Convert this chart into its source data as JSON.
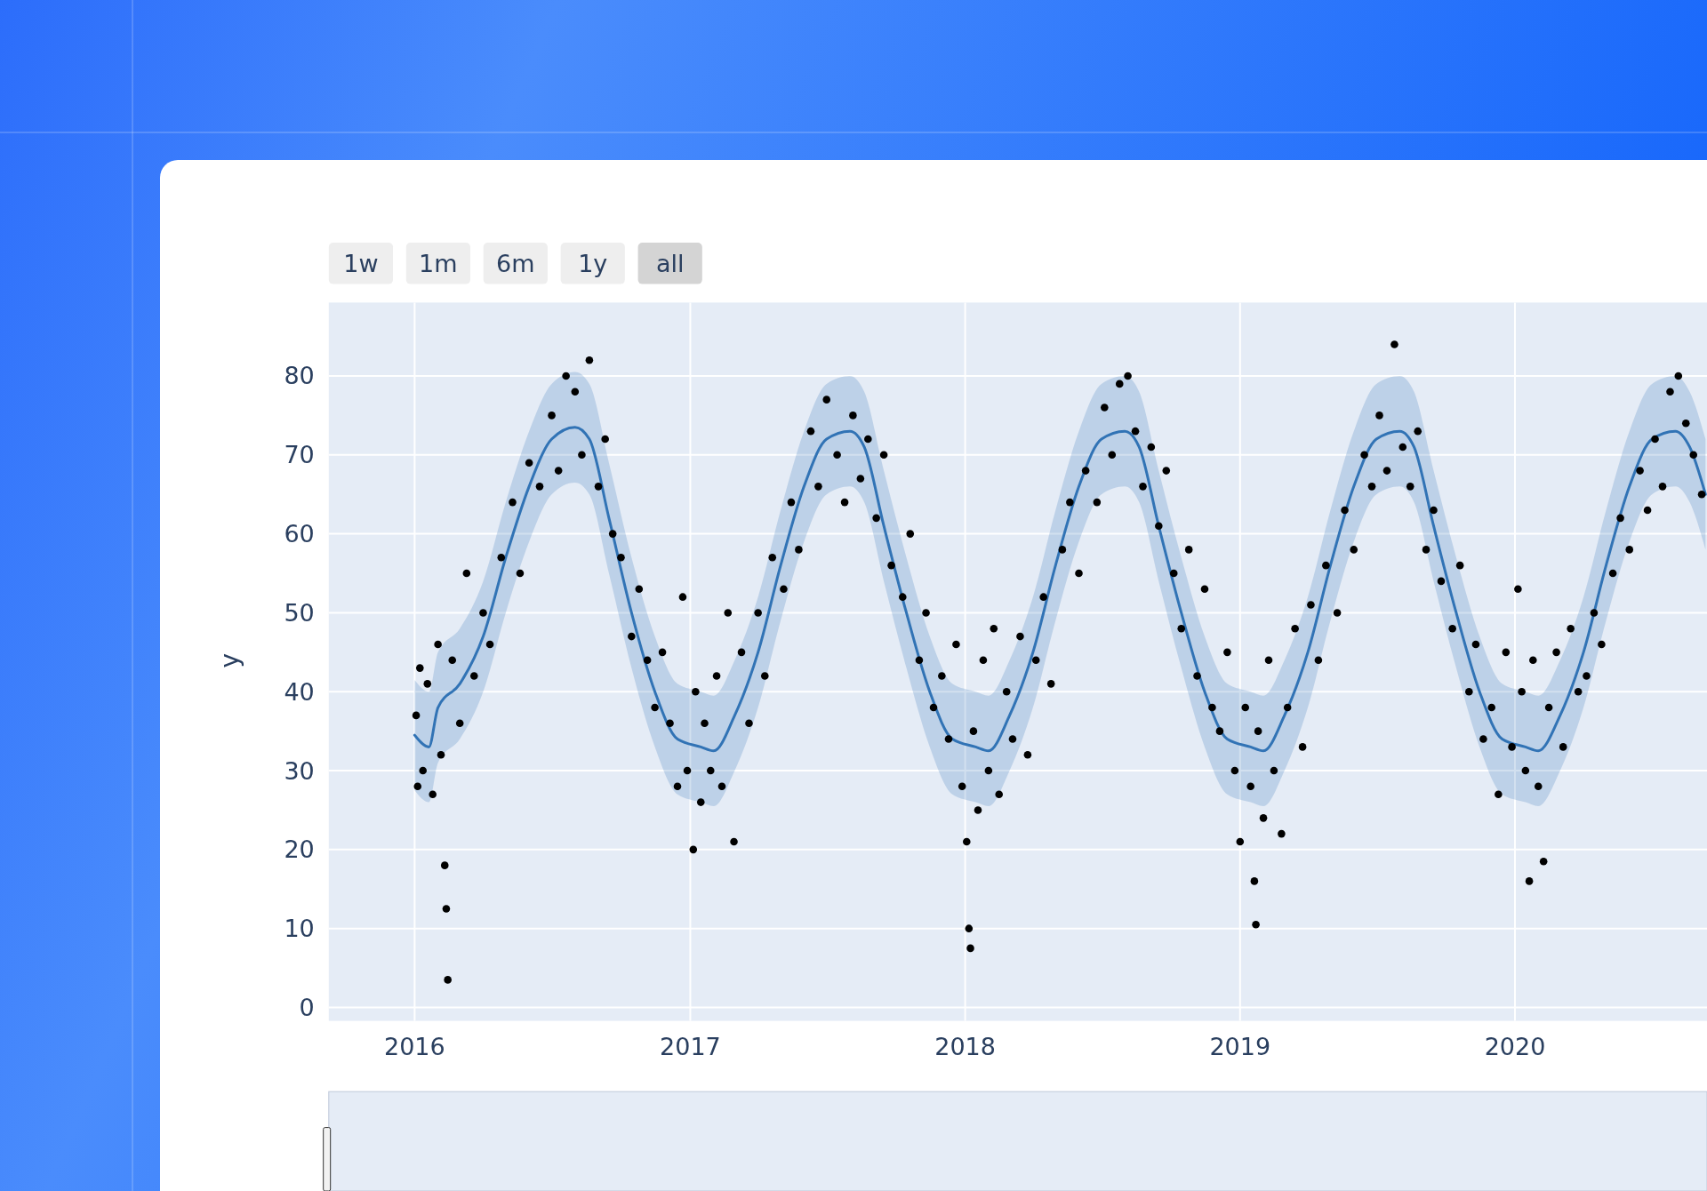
{
  "chart_data": {
    "type": "scatter",
    "ylabel": "y",
    "annotations": [
      "1w",
      "1m",
      "6m",
      "1y",
      "all"
    ],
    "xlim": [
      "2015-09-09",
      "2020-09-12"
    ],
    "xticks": [
      "2016",
      "2017",
      "2018",
      "2019",
      "2020"
    ],
    "ylim": [
      -1.7,
      89.3
    ],
    "yticks": [
      0,
      10,
      20,
      30,
      40,
      50,
      60,
      70,
      80
    ],
    "grid": true,
    "series": [
      {
        "type": "line",
        "color": "#3173b5",
        "x": [
          "2016-01-01",
          "2016-01-20",
          "2016-02-01",
          "2016-03-01",
          "2016-04-01",
          "2016-05-01",
          "2016-06-01",
          "2016-07-01",
          "2016-08-01",
          "2016-08-20",
          "2016-09-15",
          "2016-10-15",
          "2016-11-15",
          "2016-12-15",
          "2017-01-15",
          "2017-02-01",
          "2017-03-01",
          "2017-04-01",
          "2017-05-01",
          "2017-06-01",
          "2017-07-01",
          "2017-08-01",
          "2017-08-20",
          "2017-09-15",
          "2017-10-15",
          "2017-11-15",
          "2017-12-15",
          "2018-01-15",
          "2018-02-01",
          "2018-03-01",
          "2018-04-01",
          "2018-05-01",
          "2018-06-01",
          "2018-07-01",
          "2018-08-01",
          "2018-08-20",
          "2018-09-15",
          "2018-10-15",
          "2018-11-15",
          "2018-12-15",
          "2019-01-15",
          "2019-02-01",
          "2019-03-01",
          "2019-04-01",
          "2019-05-01",
          "2019-06-01",
          "2019-07-01",
          "2019-08-01",
          "2019-08-20",
          "2019-09-15",
          "2019-10-15",
          "2019-11-15",
          "2019-12-15",
          "2020-01-15",
          "2020-02-01",
          "2020-03-01",
          "2020-04-01",
          "2020-05-01",
          "2020-06-01",
          "2020-07-01",
          "2020-08-01",
          "2020-08-20",
          "2020-09-10"
        ],
        "values": [
          34.5,
          33,
          38,
          41,
          47,
          57,
          66,
          72,
          73.5,
          72,
          62,
          50,
          40,
          34,
          33,
          32.5,
          37,
          45,
          56,
          66,
          72,
          73,
          71,
          61,
          50,
          40,
          34,
          33,
          32.5,
          37,
          45,
          56,
          66,
          72,
          73,
          71,
          61,
          50,
          40,
          34,
          33,
          32.5,
          37,
          45,
          56,
          66,
          72,
          73,
          71,
          61,
          50,
          40,
          34,
          33,
          32.5,
          37,
          45,
          56,
          66,
          72,
          73,
          71,
          65
        ],
        "lower": [
          27.5,
          26,
          31,
          34,
          40,
          50,
          59,
          65,
          66.5,
          65,
          55,
          43,
          33,
          27,
          26,
          25.5,
          30,
          38,
          49,
          59,
          65,
          66,
          64,
          54,
          43,
          33,
          27,
          26,
          25.5,
          30,
          38,
          49,
          59,
          65,
          66,
          64,
          54,
          43,
          33,
          27,
          26,
          25.5,
          30,
          38,
          49,
          59,
          65,
          66,
          64,
          54,
          43,
          33,
          27,
          26,
          25.5,
          30,
          38,
          49,
          59,
          65,
          66,
          64,
          58
        ],
        "upper": [
          41.5,
          40,
          45,
          48,
          54,
          64,
          73,
          79,
          80.5,
          79,
          69,
          57,
          47,
          41,
          40,
          39.5,
          44,
          52,
          63,
          73,
          79,
          80,
          78,
          68,
          57,
          47,
          41,
          40,
          39.5,
          44,
          52,
          63,
          73,
          79,
          80,
          78,
          68,
          57,
          47,
          41,
          40,
          39.5,
          44,
          52,
          63,
          73,
          79,
          80,
          78,
          68,
          57,
          47,
          41,
          40,
          39.5,
          44,
          52,
          63,
          73,
          79,
          80,
          78,
          72
        ]
      },
      {
        "marker": "circle",
        "color": "#000000",
        "x": [
          "2016-01-03",
          "2016-01-05",
          "2016-01-08",
          "2016-01-12",
          "2016-01-18",
          "2016-01-25",
          "2016-02-01",
          "2016-02-05",
          "2016-02-10",
          "2016-02-12",
          "2016-02-14",
          "2016-02-20",
          "2016-03-01",
          "2016-03-10",
          "2016-03-20",
          "2016-04-01",
          "2016-04-10",
          "2016-04-25",
          "2016-05-10",
          "2016-05-20",
          "2016-06-01",
          "2016-06-15",
          "2016-07-01",
          "2016-07-10",
          "2016-07-20",
          "2016-08-01",
          "2016-08-10",
          "2016-08-20",
          "2016-09-01",
          "2016-09-10",
          "2016-09-20",
          "2016-10-01",
          "2016-10-15",
          "2016-10-25",
          "2016-11-05",
          "2016-11-15",
          "2016-11-25",
          "2016-12-05",
          "2016-12-15",
          "2016-12-22",
          "2016-12-28",
          "2017-01-05",
          "2017-01-08",
          "2017-01-15",
          "2017-01-20",
          "2017-01-28",
          "2017-02-05",
          "2017-02-12",
          "2017-02-20",
          "2017-02-28",
          "2017-03-10",
          "2017-03-20",
          "2017-04-01",
          "2017-04-10",
          "2017-04-20",
          "2017-05-05",
          "2017-05-15",
          "2017-05-25",
          "2017-06-10",
          "2017-06-20",
          "2017-07-01",
          "2017-07-15",
          "2017-07-25",
          "2017-08-05",
          "2017-08-15",
          "2017-08-25",
          "2017-09-05",
          "2017-09-15",
          "2017-09-25",
          "2017-10-10",
          "2017-10-20",
          "2017-11-01",
          "2017-11-10",
          "2017-11-20",
          "2017-12-01",
          "2017-12-10",
          "2017-12-20",
          "2017-12-28",
          "2018-01-03",
          "2018-01-06",
          "2018-01-08",
          "2018-01-12",
          "2018-01-18",
          "2018-01-25",
          "2018-02-01",
          "2018-02-08",
          "2018-02-15",
          "2018-02-25",
          "2018-03-05",
          "2018-03-15",
          "2018-03-25",
          "2018-04-05",
          "2018-04-15",
          "2018-04-25",
          "2018-05-10",
          "2018-05-20",
          "2018-06-01",
          "2018-06-10",
          "2018-06-25",
          "2018-07-05",
          "2018-07-15",
          "2018-07-25",
          "2018-08-05",
          "2018-08-15",
          "2018-08-25",
          "2018-09-05",
          "2018-09-15",
          "2018-09-25",
          "2018-10-05",
          "2018-10-15",
          "2018-10-25",
          "2018-11-05",
          "2018-11-15",
          "2018-11-25",
          "2018-12-05",
          "2018-12-15",
          "2018-12-25",
          "2019-01-01",
          "2019-01-08",
          "2019-01-15",
          "2019-01-20",
          "2019-01-22",
          "2019-01-25",
          "2019-02-01",
          "2019-02-08",
          "2019-02-15",
          "2019-02-25",
          "2019-03-05",
          "2019-03-15",
          "2019-03-25",
          "2019-04-05",
          "2019-04-15",
          "2019-04-25",
          "2019-05-10",
          "2019-05-20",
          "2019-06-01",
          "2019-06-15",
          "2019-06-25",
          "2019-07-05",
          "2019-07-15",
          "2019-07-25",
          "2019-08-05",
          "2019-08-15",
          "2019-08-25",
          "2019-09-05",
          "2019-09-15",
          "2019-09-25",
          "2019-10-10",
          "2019-10-20",
          "2019-11-01",
          "2019-11-10",
          "2019-11-20",
          "2019-12-01",
          "2019-12-10",
          "2019-12-20",
          "2019-12-28",
          "2020-01-05",
          "2020-01-10",
          "2020-01-15",
          "2020-01-20",
          "2020-01-25",
          "2020-02-01",
          "2020-02-08",
          "2020-02-15",
          "2020-02-25",
          "2020-03-05",
          "2020-03-15",
          "2020-03-25",
          "2020-04-05",
          "2020-04-15",
          "2020-04-25",
          "2020-05-10",
          "2020-05-20",
          "2020-06-01",
          "2020-06-15",
          "2020-06-25",
          "2020-07-05",
          "2020-07-15",
          "2020-07-25",
          "2020-08-05",
          "2020-08-15",
          "2020-08-25",
          "2020-09-05"
        ],
        "values": [
          37,
          28,
          43,
          30,
          41,
          27,
          46,
          32,
          18,
          12.5,
          3.5,
          44,
          36,
          55,
          42,
          50,
          46,
          57,
          64,
          55,
          69,
          66,
          75,
          68,
          80,
          78,
          70,
          82,
          66,
          72,
          60,
          57,
          47,
          53,
          44,
          38,
          45,
          36,
          28,
          52,
          30,
          20,
          40,
          26,
          36,
          30,
          42,
          28,
          50,
          21,
          45,
          36,
          50,
          42,
          57,
          53,
          64,
          58,
          73,
          66,
          77,
          70,
          64,
          75,
          67,
          72,
          62,
          70,
          56,
          52,
          60,
          44,
          50,
          38,
          42,
          34,
          46,
          28,
          21,
          10,
          7.5,
          35,
          25,
          44,
          30,
          48,
          27,
          40,
          34,
          47,
          32,
          44,
          52,
          41,
          58,
          64,
          55,
          68,
          64,
          76,
          70,
          79,
          80,
          73,
          66,
          71,
          61,
          68,
          55,
          48,
          58,
          42,
          53,
          38,
          35,
          45,
          30,
          21,
          38,
          28,
          16,
          10.5,
          35,
          24,
          44,
          30,
          22,
          38,
          48,
          33,
          51,
          44,
          56,
          50,
          63,
          58,
          70,
          66,
          75,
          68,
          84,
          71,
          66,
          73,
          58,
          63,
          54,
          48,
          56,
          40,
          46,
          34,
          38,
          27,
          45,
          33,
          53,
          40,
          30,
          16,
          44,
          28,
          18.5,
          38,
          45,
          33,
          48,
          40,
          42,
          50,
          46,
          55,
          62,
          58,
          68,
          63,
          72,
          66,
          78,
          80,
          74,
          70,
          65
        ]
      }
    ]
  }
}
